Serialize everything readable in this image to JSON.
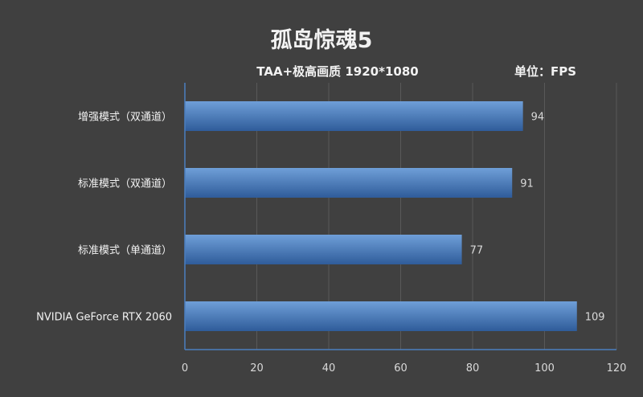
{
  "title": "孤岛惊魂5",
  "subtitle": "TAA+极高画质 1920*1080",
  "unit_label": "单位：FPS",
  "colors": {
    "background": "#404040",
    "bar_light": "#6f9fd8",
    "bar_dark": "#2f5c9a",
    "gridline": "#595959",
    "axis": "#4a7fbf"
  },
  "chart_data": {
    "type": "bar",
    "orientation": "horizontal",
    "categories": [
      "增强模式（双通道）",
      "标准模式（双通道）",
      "标准模式（单通道）",
      "NVIDIA GeForce RTX 2060"
    ],
    "values": [
      94,
      91,
      77,
      109
    ],
    "value_labels": [
      "94",
      "91",
      "77",
      "109"
    ],
    "xlim": [
      0,
      120
    ],
    "xticks": [
      0,
      20,
      40,
      60,
      80,
      100,
      120
    ],
    "xtick_labels": [
      "0",
      "20",
      "40",
      "60",
      "80",
      "100",
      "120"
    ],
    "grid": true,
    "legend": "none"
  }
}
